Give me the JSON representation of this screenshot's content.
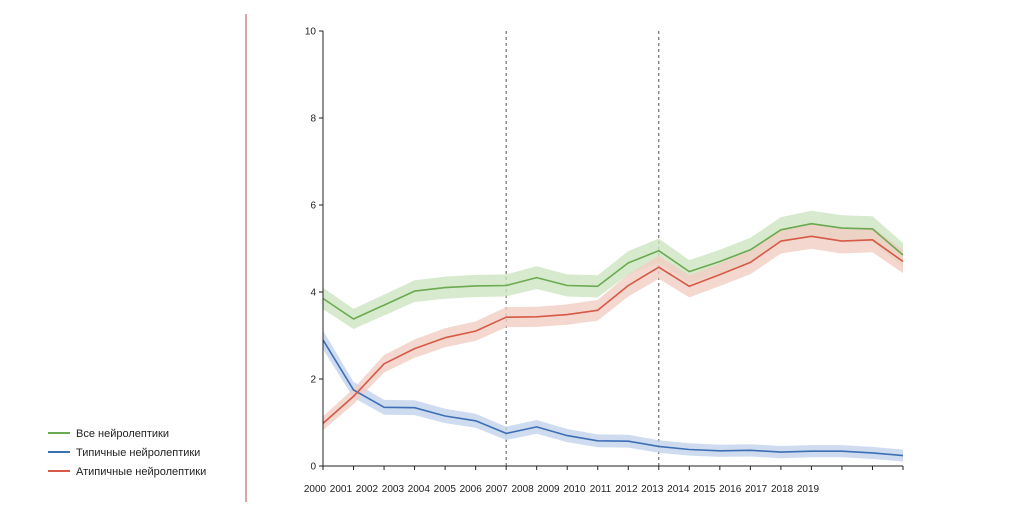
{
  "chart_data": {
    "type": "line",
    "title": "",
    "xlabel": "",
    "ylabel": "",
    "ylim": [
      0,
      10
    ],
    "yticks": [
      "0",
      "2",
      "4",
      "6",
      "8",
      "10"
    ],
    "x_labels": [
      "2000",
      "2001",
      "2002",
      "2003",
      "2004",
      "2005",
      "2006",
      "2007",
      "2008",
      "2009",
      "2010",
      "2011",
      "2012",
      "2013",
      "2014",
      "2015",
      "2016",
      "2017",
      "2018",
      "2019"
    ],
    "x_count": 20,
    "vertical_dashed_lines_at_index": [
      6,
      11
    ],
    "legend_position": "bottom-left",
    "series": [
      {
        "name": "Все нейролептики",
        "color": "#6aaa50",
        "band_color": "#cde5c0",
        "values": [
          3.85,
          3.38,
          3.7,
          4.02,
          4.1,
          4.14,
          4.15,
          4.33,
          4.15,
          4.13,
          4.67,
          4.95,
          4.47,
          4.7,
          4.97,
          5.43,
          5.57,
          5.47,
          5.45,
          4.85
        ]
      },
      {
        "name": "Типичные нейролептики",
        "color": "#3d6fb5",
        "band_color": "#c3d3ec",
        "values": [
          2.9,
          1.75,
          1.35,
          1.34,
          1.15,
          1.04,
          0.75,
          0.9,
          0.7,
          0.58,
          0.57,
          0.45,
          0.38,
          0.35,
          0.36,
          0.32,
          0.34,
          0.34,
          0.3,
          0.24
        ]
      },
      {
        "name": "Атипичные нейролептики",
        "color": "#d65a45",
        "band_color": "#f1cdc3",
        "values": [
          0.98,
          1.6,
          2.35,
          2.7,
          2.95,
          3.1,
          3.42,
          3.43,
          3.48,
          3.58,
          4.15,
          4.57,
          4.13,
          4.4,
          4.68,
          5.17,
          5.28,
          5.17,
          5.2,
          4.7
        ]
      }
    ]
  }
}
